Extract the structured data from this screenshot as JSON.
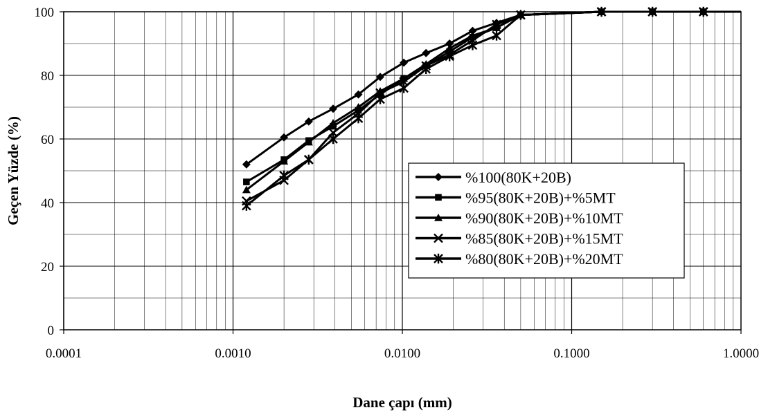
{
  "chart_data": {
    "type": "line",
    "title": "",
    "xlabel": "Dane çapı (mm)",
    "ylabel": "Geçen Yüzde (%)",
    "x_scale": "log",
    "xlim": [
      0.0001,
      1.0
    ],
    "ylim": [
      0,
      100
    ],
    "x_ticks": [
      0.0001,
      0.001,
      0.01,
      0.1,
      1.0
    ],
    "x_tick_labels": [
      "0.0001",
      "0.0010",
      "0.0100",
      "0.1000",
      "1.0000"
    ],
    "y_ticks": [
      0,
      20,
      40,
      60,
      80,
      100
    ],
    "y_tick_labels": [
      "0",
      "20",
      "40",
      "60",
      "80",
      "100"
    ],
    "grid": true,
    "legend_position": "right-center",
    "line_color": "#000000",
    "series": [
      {
        "name": "%100(80K+20B)",
        "marker": "diamond",
        "x": [
          0.0012,
          0.002,
          0.0028,
          0.0039,
          0.0055,
          0.0074,
          0.0102,
          0.0138,
          0.019,
          0.026,
          0.036,
          0.05,
          0.15,
          0.3,
          0.6,
          1.0
        ],
        "y": [
          52,
          60.5,
          65.5,
          69.5,
          74,
          79.5,
          84,
          87,
          90,
          94,
          96.5,
          99,
          100,
          100,
          100,
          100
        ]
      },
      {
        "name": "%95(80K+20B)+%5MT",
        "marker": "square",
        "x": [
          0.0012,
          0.002,
          0.0028,
          0.0039,
          0.0055,
          0.0074,
          0.0102,
          0.0138,
          0.019,
          0.026,
          0.036,
          0.05,
          0.15,
          0.3,
          0.6,
          1.0
        ],
        "y": [
          46.5,
          53.5,
          59.5,
          64,
          69,
          74,
          79,
          83,
          87.5,
          92,
          95,
          99,
          100,
          100,
          100,
          100
        ]
      },
      {
        "name": "%90(80K+20B)+%10MT",
        "marker": "triangle",
        "x": [
          0.0012,
          0.002,
          0.0028,
          0.0039,
          0.0055,
          0.0074,
          0.0102,
          0.0138,
          0.019,
          0.026,
          0.036,
          0.05,
          0.15,
          0.3,
          0.6,
          1.0
        ],
        "y": [
          44,
          53,
          59,
          65,
          70,
          75,
          79,
          83.5,
          88.5,
          92.5,
          95,
          99,
          100,
          100,
          100,
          100
        ]
      },
      {
        "name": "%85(80K+20B)+%15MT",
        "marker": "x",
        "x": [
          0.0012,
          0.002,
          0.0028,
          0.0039,
          0.0055,
          0.0074,
          0.0102,
          0.0138,
          0.019,
          0.026,
          0.036,
          0.05,
          0.15,
          0.3,
          0.6,
          1.0
        ],
        "y": [
          40.5,
          47,
          53.5,
          62,
          68,
          74.5,
          78,
          83,
          86.5,
          91,
          96,
          99,
          100,
          100,
          100,
          100
        ]
      },
      {
        "name": "%80(80K+20B)+%20MT",
        "marker": "star",
        "x": [
          0.0012,
          0.002,
          0.0028,
          0.0039,
          0.0055,
          0.0074,
          0.0102,
          0.0138,
          0.019,
          0.026,
          0.036,
          0.05,
          0.15,
          0.3,
          0.6,
          1.0
        ],
        "y": [
          39,
          48.5,
          53.5,
          60,
          66.5,
          72.5,
          76,
          82,
          86,
          89.5,
          92.5,
          99,
          100,
          100,
          100,
          100
        ]
      }
    ]
  }
}
